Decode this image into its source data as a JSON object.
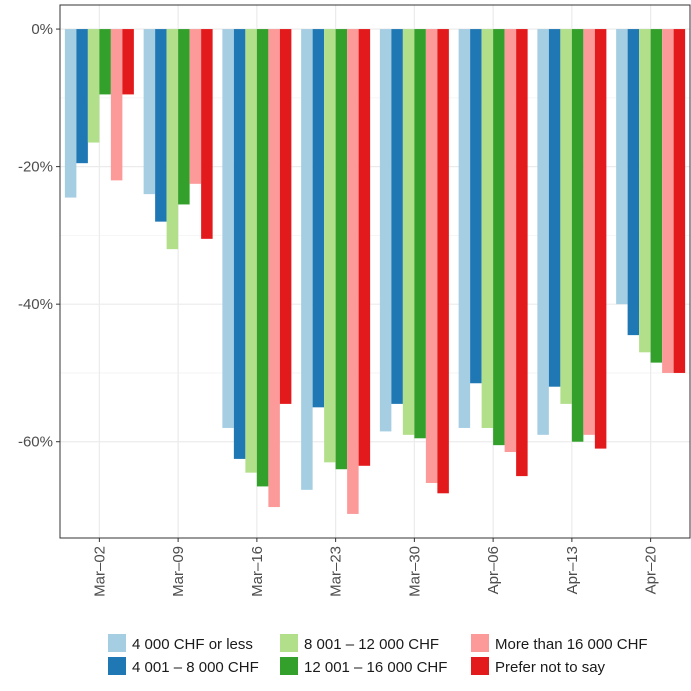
{
  "chart_data": {
    "type": "bar",
    "categories": [
      "Mar–02",
      "Mar–09",
      "Mar–16",
      "Mar–23",
      "Mar–30",
      "Apr–06",
      "Apr–13",
      "Apr–20"
    ],
    "y_tick_labels": [
      "0%",
      "-20%",
      "-40%",
      "-60%"
    ],
    "y_ticks": [
      0,
      -20,
      -40,
      -60
    ],
    "ylim": [
      -74,
      3.5
    ],
    "y_unit": "%",
    "grid": true,
    "legend_position": "bottom",
    "series": [
      {
        "name": "4 000 CHF or less",
        "color": "#a6cee3",
        "values": [
          -24.5,
          -24.0,
          -58.0,
          -67.0,
          -58.5,
          -58.0,
          -59.0,
          -40.0
        ]
      },
      {
        "name": "4 001 – 8 000 CHF",
        "color": "#1f78b4",
        "values": [
          -19.5,
          -28.0,
          -62.5,
          -55.0,
          -54.5,
          -51.5,
          -52.0,
          -44.5
        ]
      },
      {
        "name": "8 001 – 12 000 CHF",
        "color": "#b2df8a",
        "values": [
          -16.5,
          -32.0,
          -64.5,
          -63.0,
          -59.0,
          -58.0,
          -54.5,
          -47.0
        ]
      },
      {
        "name": "12 001 – 16 000 CHF",
        "color": "#33a02c",
        "values": [
          -9.5,
          -25.5,
          -66.5,
          -64.0,
          -59.5,
          -60.5,
          -60.0,
          -48.5
        ]
      },
      {
        "name": "More than 16 000 CHF",
        "color": "#fb9a99",
        "values": [
          -22.0,
          -22.5,
          -69.5,
          -70.5,
          -66.0,
          -61.5,
          -59.0,
          -50.0
        ]
      },
      {
        "name": "Prefer not to say",
        "color": "#e31a1c",
        "values": [
          -9.5,
          -30.5,
          -54.5,
          -63.5,
          -67.5,
          -65.0,
          -61.0,
          -50.0
        ]
      }
    ]
  }
}
